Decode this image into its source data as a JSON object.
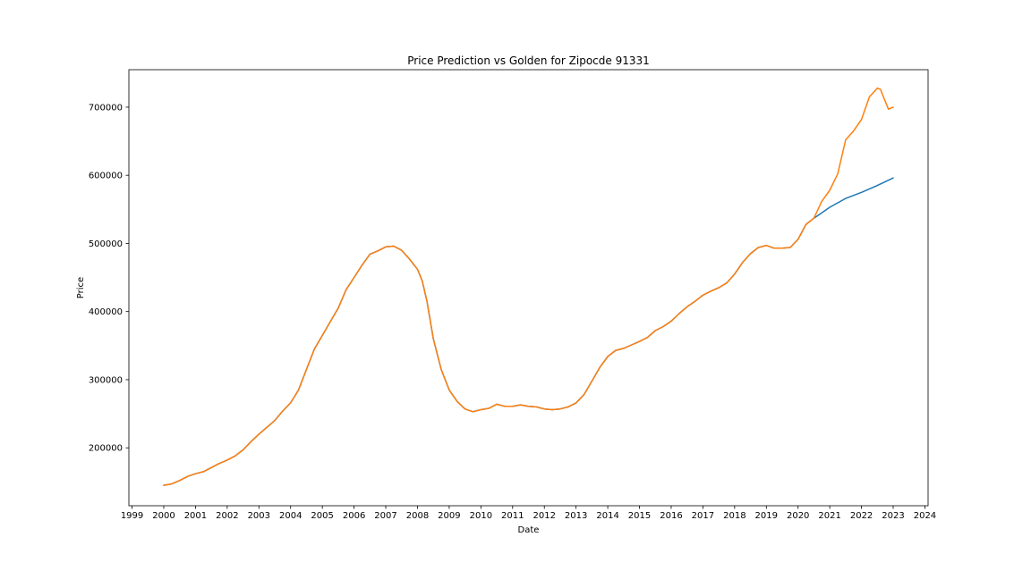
{
  "chart_data": {
    "type": "line",
    "title": "Price Prediction vs Golden for Zipocde 91331",
    "xlabel": "Date",
    "ylabel": "Price",
    "x_axis": "date (decimal year)",
    "xlim": [
      1998.9,
      2024.1
    ],
    "ylim": [
      115000,
      755000
    ],
    "x_ticks": [
      1999,
      2000,
      2001,
      2002,
      2003,
      2004,
      2005,
      2006,
      2007,
      2008,
      2009,
      2010,
      2011,
      2012,
      2013,
      2014,
      2015,
      2016,
      2017,
      2018,
      2019,
      2020,
      2021,
      2022,
      2023,
      2024
    ],
    "y_ticks": [
      200000,
      300000,
      400000,
      500000,
      600000,
      700000
    ],
    "grid": false,
    "legend": "none",
    "series": [
      {
        "color": "#1f77b4",
        "x": [
          2000.0,
          2000.25,
          2000.5,
          2000.75,
          2001.0,
          2001.25,
          2001.5,
          2001.75,
          2002.0,
          2002.25,
          2002.5,
          2002.75,
          2003.0,
          2003.25,
          2003.5,
          2003.75,
          2004.0,
          2004.25,
          2004.5,
          2004.75,
          2005.0,
          2005.25,
          2005.5,
          2005.75,
          2006.0,
          2006.25,
          2006.5,
          2006.75,
          2007.0,
          2007.25,
          2007.5,
          2007.75,
          2008.0,
          2008.15,
          2008.3,
          2008.5,
          2008.75,
          2009.0,
          2009.25,
          2009.5,
          2009.75,
          2010.0,
          2010.25,
          2010.5,
          2010.75,
          2011.0,
          2011.25,
          2011.5,
          2011.75,
          2012.0,
          2012.25,
          2012.5,
          2012.75,
          2013.0,
          2013.25,
          2013.5,
          2013.75,
          2014.0,
          2014.25,
          2014.5,
          2014.75,
          2015.0,
          2015.25,
          2015.5,
          2015.75,
          2016.0,
          2016.25,
          2016.5,
          2016.75,
          2017.0,
          2017.25,
          2017.5,
          2017.75,
          2018.0,
          2018.25,
          2018.5,
          2018.75,
          2019.0,
          2019.25,
          2019.5,
          2019.75,
          2020.0,
          2020.25,
          2020.5,
          2020.75,
          2021.0,
          2021.5,
          2022.0,
          2022.5,
          2023.0
        ],
        "values": [
          145000,
          147000,
          152000,
          158000,
          162000,
          165000,
          171000,
          177000,
          182000,
          188000,
          197000,
          209000,
          220000,
          230000,
          240000,
          254000,
          266000,
          285000,
          315000,
          345000,
          365000,
          385000,
          405000,
          432000,
          450000,
          468000,
          484000,
          489000,
          495000,
          496000,
          490000,
          477000,
          462000,
          445000,
          415000,
          360000,
          315000,
          285000,
          268000,
          257000,
          253000,
          256000,
          258000,
          264000,
          261000,
          261000,
          263000,
          261000,
          260000,
          257000,
          256000,
          257000,
          260000,
          266000,
          278000,
          298000,
          318000,
          334000,
          343000,
          346000,
          351000,
          356000,
          362000,
          372000,
          378000,
          386000,
          397000,
          407000,
          415000,
          424000,
          430000,
          435000,
          442000,
          455000,
          472000,
          485000,
          494000,
          497000,
          493000,
          493000,
          494000,
          506000,
          528000,
          537000,
          545000,
          553000,
          566000,
          575000,
          585000,
          596000
        ]
      },
      {
        "color": "#ff7f0e",
        "x": [
          2000.0,
          2000.25,
          2000.5,
          2000.75,
          2001.0,
          2001.25,
          2001.5,
          2001.75,
          2002.0,
          2002.25,
          2002.5,
          2002.75,
          2003.0,
          2003.25,
          2003.5,
          2003.75,
          2004.0,
          2004.25,
          2004.5,
          2004.75,
          2005.0,
          2005.25,
          2005.5,
          2005.75,
          2006.0,
          2006.25,
          2006.5,
          2006.75,
          2007.0,
          2007.25,
          2007.5,
          2007.75,
          2008.0,
          2008.15,
          2008.3,
          2008.5,
          2008.75,
          2009.0,
          2009.25,
          2009.5,
          2009.75,
          2010.0,
          2010.25,
          2010.5,
          2010.75,
          2011.0,
          2011.25,
          2011.5,
          2011.75,
          2012.0,
          2012.25,
          2012.5,
          2012.75,
          2013.0,
          2013.25,
          2013.5,
          2013.75,
          2014.0,
          2014.25,
          2014.5,
          2014.75,
          2015.0,
          2015.25,
          2015.5,
          2015.75,
          2016.0,
          2016.25,
          2016.5,
          2016.75,
          2017.0,
          2017.25,
          2017.5,
          2017.75,
          2018.0,
          2018.25,
          2018.5,
          2018.75,
          2019.0,
          2019.25,
          2019.5,
          2019.75,
          2020.0,
          2020.25,
          2020.5,
          2020.75,
          2021.0,
          2021.25,
          2021.5,
          2021.75,
          2022.0,
          2022.25,
          2022.5,
          2022.6,
          2022.85,
          2023.0
        ],
        "values": [
          145000,
          147000,
          152000,
          158000,
          162000,
          165000,
          171000,
          177000,
          182000,
          188000,
          197000,
          209000,
          220000,
          230000,
          240000,
          254000,
          266000,
          285000,
          315000,
          345000,
          365000,
          385000,
          405000,
          432000,
          450000,
          468000,
          484000,
          489000,
          495000,
          496000,
          490000,
          477000,
          462000,
          445000,
          415000,
          360000,
          315000,
          285000,
          268000,
          257000,
          253000,
          256000,
          258000,
          264000,
          261000,
          261000,
          263000,
          261000,
          260000,
          257000,
          256000,
          257000,
          260000,
          266000,
          278000,
          298000,
          318000,
          334000,
          343000,
          346000,
          351000,
          356000,
          362000,
          372000,
          378000,
          386000,
          397000,
          407000,
          415000,
          424000,
          430000,
          435000,
          442000,
          455000,
          472000,
          485000,
          494000,
          497000,
          493000,
          493000,
          494000,
          506000,
          528000,
          537000,
          562000,
          578000,
          602000,
          652000,
          665000,
          682000,
          715000,
          728000,
          726000,
          697000,
          700000
        ]
      }
    ]
  }
}
